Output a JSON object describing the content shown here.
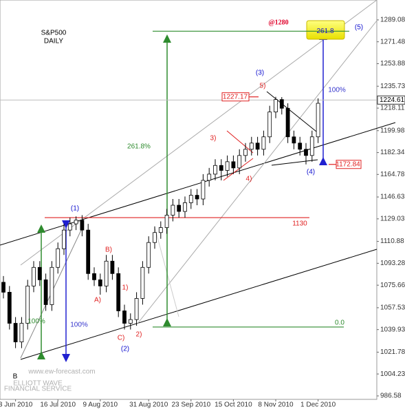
{
  "chart_data": {
    "type": "candlestick",
    "categories": [
      null,
      null,
      "3 Jun 2010",
      null,
      null,
      null,
      null,
      null,
      null,
      "16 Jul 2010",
      null,
      null,
      null,
      null,
      null,
      null,
      "9 Aug 2010",
      null,
      null,
      null,
      null,
      null,
      null,
      null,
      "31 Aug 2010",
      null,
      null,
      null,
      null,
      null,
      null,
      "23 Sep 2010",
      null,
      null,
      null,
      null,
      null,
      null,
      "15 Oct 2010",
      null,
      null,
      null,
      null,
      null,
      null,
      "8 Nov 2010",
      null,
      null,
      null,
      null,
      null,
      null,
      "1 Dec 2010"
    ],
    "open": [
      1078,
      1070,
      1045,
      1030,
      1045,
      1075,
      1090,
      1080,
      1060,
      1090,
      1105,
      1120,
      1125,
      1128,
      1120,
      1085,
      1080,
      1075,
      1095,
      1085,
      1055,
      1045,
      1048,
      1065,
      1090,
      1110,
      1118,
      1122,
      1132,
      1140,
      1135,
      1142,
      1148,
      1145,
      1160,
      1165,
      1172,
      1168,
      1175,
      1170,
      1180,
      1185,
      1190,
      1185,
      1195,
      1215,
      1225,
      1218,
      1195,
      1190,
      1185,
      1180,
      1195
    ],
    "high": [
      1083,
      1075,
      1050,
      1050,
      1080,
      1095,
      1095,
      1085,
      1095,
      1110,
      1125,
      1130,
      1131,
      1132,
      1125,
      1090,
      1085,
      1100,
      1100,
      1090,
      1060,
      1053,
      1070,
      1095,
      1115,
      1123,
      1127,
      1137,
      1145,
      1145,
      1147,
      1153,
      1153,
      1165,
      1170,
      1177,
      1177,
      1180,
      1180,
      1185,
      1190,
      1195,
      1195,
      1200,
      1220,
      1227.17,
      1227,
      1222,
      1200,
      1195,
      1190,
      1200,
      1226
    ],
    "low": [
      1065,
      1040,
      1025,
      1025,
      1040,
      1070,
      1075,
      1055,
      1055,
      1085,
      1100,
      1115,
      1120,
      1115,
      1080,
      1075,
      1068,
      1070,
      1080,
      1050,
      1040,
      1040,
      1043,
      1060,
      1085,
      1105,
      1113,
      1117,
      1127,
      1130,
      1130,
      1137,
      1140,
      1140,
      1155,
      1160,
      1160,
      1163,
      1165,
      1165,
      1175,
      1180,
      1180,
      1180,
      1190,
      1210,
      1213,
      1190,
      1185,
      1180,
      1172.84,
      1175,
      1190
    ],
    "close": [
      1070,
      1045,
      1030,
      1045,
      1075,
      1090,
      1080,
      1060,
      1090,
      1105,
      1120,
      1125,
      1128,
      1120,
      1085,
      1080,
      1075,
      1095,
      1085,
      1055,
      1045,
      1048,
      1065,
      1090,
      1110,
      1118,
      1122,
      1132,
      1140,
      1135,
      1142,
      1148,
      1145,
      1160,
      1165,
      1172,
      1168,
      1175,
      1170,
      1180,
      1185,
      1190,
      1185,
      1195,
      1215,
      1225,
      1218,
      1195,
      1190,
      1185,
      1180,
      1195,
      1222
    ],
    "up_color": "#ffffff",
    "down_color": "#000000",
    "ylim": [
      983.8,
      1305.1
    ],
    "yticks": [
      986.58,
      1004.23,
      1021.78,
      1039.93,
      1057.53,
      1075.66,
      1093.28,
      1110.88,
      1129.03,
      1146.63,
      1164.78,
      1182.34,
      1199.98,
      1218.11,
      1235.73,
      1253.88,
      1271.48,
      1289.08
    ],
    "last_price": 1224.61,
    "levels": [
      {
        "value": 1280,
        "label": "261.8",
        "color": "#2e8b2e"
      },
      {
        "value": 1130,
        "label": "1130",
        "color": "#e02020"
      },
      {
        "value": 1227.17,
        "label": "1227.17",
        "color": "#e02020"
      },
      {
        "value": 1172.84,
        "label": "1172.84",
        "color": "#e02020"
      },
      {
        "value": 1042,
        "label": "0.0",
        "color": "#2e8b2e"
      }
    ],
    "annotations": [
      {
        "text": "S&P500",
        "color": "#000000"
      },
      {
        "text": "DAILY",
        "color": "#000000"
      },
      {
        "text": "@1280",
        "color": "#e0002a"
      },
      {
        "text": "(5)",
        "color": "#1010d0"
      },
      {
        "text": "(3)",
        "color": "#1010d0"
      },
      {
        "text": "5)",
        "color": "#e02020"
      },
      {
        "text": "100%",
        "color": "#3333cc"
      },
      {
        "text": "261.8%",
        "color": "#2e8b2e"
      },
      {
        "text": "3)",
        "color": "#e02020"
      },
      {
        "text": "4)",
        "color": "#e02020"
      },
      {
        "text": "(4)",
        "color": "#1010d0"
      },
      {
        "text": "(1)",
        "color": "#1010d0"
      },
      {
        "text": "B)",
        "color": "#e02020"
      },
      {
        "text": "1)",
        "color": "#e02020"
      },
      {
        "text": "A)",
        "color": "#e02020"
      },
      {
        "text": "C)",
        "color": "#e02020"
      },
      {
        "text": "2)",
        "color": "#e02020"
      },
      {
        "text": "(2)",
        "color": "#1010d0"
      },
      {
        "text": "100%",
        "color": "#2e8b2e"
      },
      {
        "text": "100%",
        "color": "#3333cc"
      },
      {
        "text": "B",
        "color": "#000000"
      },
      {
        "text": "www.ew-forecast.com",
        "color": "#b0b0b0"
      },
      {
        "text": "ELLIOTT WAVE",
        "color": "#b0b0b0"
      },
      {
        "text": "FINANCIAL SERVICE",
        "color": "#b0b0b0"
      }
    ]
  }
}
